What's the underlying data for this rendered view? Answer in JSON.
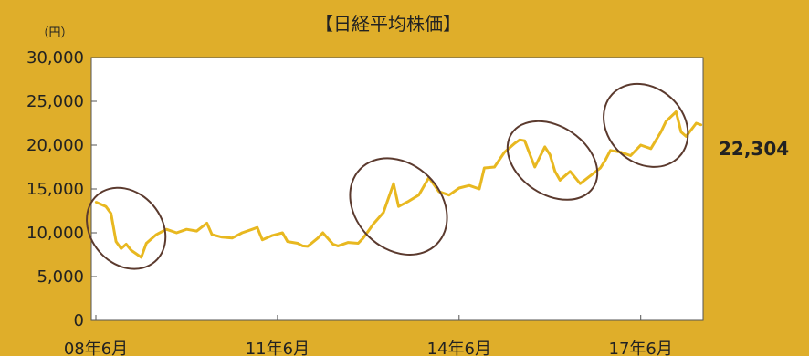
{
  "chart_data": {
    "type": "line",
    "title": "【日経平均株価】",
    "unit_label": "（円）",
    "ylim": [
      0,
      30000
    ],
    "y_ticks": [
      0,
      5000,
      10000,
      15000,
      20000,
      25000,
      30000
    ],
    "y_tick_labels": [
      "0",
      "5,000",
      "10,000",
      "15,000",
      "20,000",
      "25,000",
      "30,000"
    ],
    "x_ticks": [
      {
        "date": "2008-06",
        "label": "08年6月"
      },
      {
        "date": "2011-06",
        "label": "11年6月"
      },
      {
        "date": "2014-06",
        "label": "14年6月"
      },
      {
        "date": "2017-06",
        "label": "17年6月"
      }
    ],
    "xlim": [
      "2008-06",
      "2018-06"
    ],
    "grid": false,
    "series": [
      {
        "color": "#e8b820",
        "points": [
          [
            "2008-06",
            13500
          ],
          [
            "2008-08",
            13000
          ],
          [
            "2008-09",
            12200
          ],
          [
            "2008-10",
            9000
          ],
          [
            "2008-11",
            8200
          ],
          [
            "2008-12",
            8700
          ],
          [
            "2009-01",
            8000
          ],
          [
            "2009-02",
            7600
          ],
          [
            "2009-03",
            7200
          ],
          [
            "2009-04",
            8800
          ],
          [
            "2009-06",
            9800
          ],
          [
            "2009-08",
            10400
          ],
          [
            "2009-10",
            10000
          ],
          [
            "2009-12",
            10400
          ],
          [
            "2010-02",
            10200
          ],
          [
            "2010-04",
            11100
          ],
          [
            "2010-05",
            9800
          ],
          [
            "2010-07",
            9500
          ],
          [
            "2010-09",
            9400
          ],
          [
            "2010-11",
            10000
          ],
          [
            "2011-01",
            10400
          ],
          [
            "2011-02",
            10600
          ],
          [
            "2011-03",
            9200
          ],
          [
            "2011-05",
            9700
          ],
          [
            "2011-07",
            10000
          ],
          [
            "2011-08",
            9000
          ],
          [
            "2011-10",
            8800
          ],
          [
            "2011-11",
            8500
          ],
          [
            "2011-12",
            8450
          ],
          [
            "2012-02",
            9400
          ],
          [
            "2012-03",
            10000
          ],
          [
            "2012-05",
            8700
          ],
          [
            "2012-06",
            8500
          ],
          [
            "2012-08",
            8900
          ],
          [
            "2012-10",
            8800
          ],
          [
            "2012-11",
            9400
          ],
          [
            "2012-12",
            10200
          ],
          [
            "2013-01",
            11000
          ],
          [
            "2013-03",
            12300
          ],
          [
            "2013-05",
            15600
          ],
          [
            "2013-06",
            13000
          ],
          [
            "2013-08",
            13600
          ],
          [
            "2013-10",
            14300
          ],
          [
            "2013-12",
            16300
          ],
          [
            "2014-02",
            14700
          ],
          [
            "2014-04",
            14300
          ],
          [
            "2014-06",
            15100
          ],
          [
            "2014-08",
            15400
          ],
          [
            "2014-10",
            15000
          ],
          [
            "2014-11",
            17400
          ],
          [
            "2015-01",
            17500
          ],
          [
            "2015-03",
            19200
          ],
          [
            "2015-05",
            20200
          ],
          [
            "2015-06",
            20600
          ],
          [
            "2015-07",
            20500
          ],
          [
            "2015-08",
            19000
          ],
          [
            "2015-09",
            17500
          ],
          [
            "2015-11",
            19800
          ],
          [
            "2015-12",
            18900
          ],
          [
            "2016-01",
            17000
          ],
          [
            "2016-02",
            16000
          ],
          [
            "2016-04",
            17000
          ],
          [
            "2016-06",
            15600
          ],
          [
            "2016-08",
            16500
          ],
          [
            "2016-10",
            17400
          ],
          [
            "2016-11",
            18300
          ],
          [
            "2016-12",
            19400
          ],
          [
            "2017-02",
            19200
          ],
          [
            "2017-04",
            18800
          ],
          [
            "2017-06",
            20000
          ],
          [
            "2017-08",
            19600
          ],
          [
            "2017-10",
            21500
          ],
          [
            "2017-11",
            22700
          ],
          [
            "2018-01",
            23800
          ],
          [
            "2018-02",
            21500
          ],
          [
            "2018-03",
            21000
          ],
          [
            "2018-05",
            22500
          ],
          [
            "2018-06",
            22304
          ]
        ]
      }
    ],
    "annotations": [
      {
        "type": "ellipse",
        "from": "2008-06",
        "to": "2009-06",
        "y_low": 6500,
        "y_high": 14500
      },
      {
        "type": "ellipse",
        "from": "2012-10",
        "to": "2014-02",
        "y_low": 8500,
        "y_high": 17500
      },
      {
        "type": "ellipse",
        "from": "2015-04",
        "to": "2016-09",
        "y_low": 15000,
        "y_high": 21500
      },
      {
        "type": "ellipse",
        "from": "2016-12",
        "to": "2018-02",
        "y_low": 18500,
        "y_high": 26000
      }
    ],
    "last_value_label": "22,304"
  },
  "colors": {
    "background": "#dfae2a",
    "plot_area": "#ffffff",
    "ellipse": "#5b3a2e"
  }
}
